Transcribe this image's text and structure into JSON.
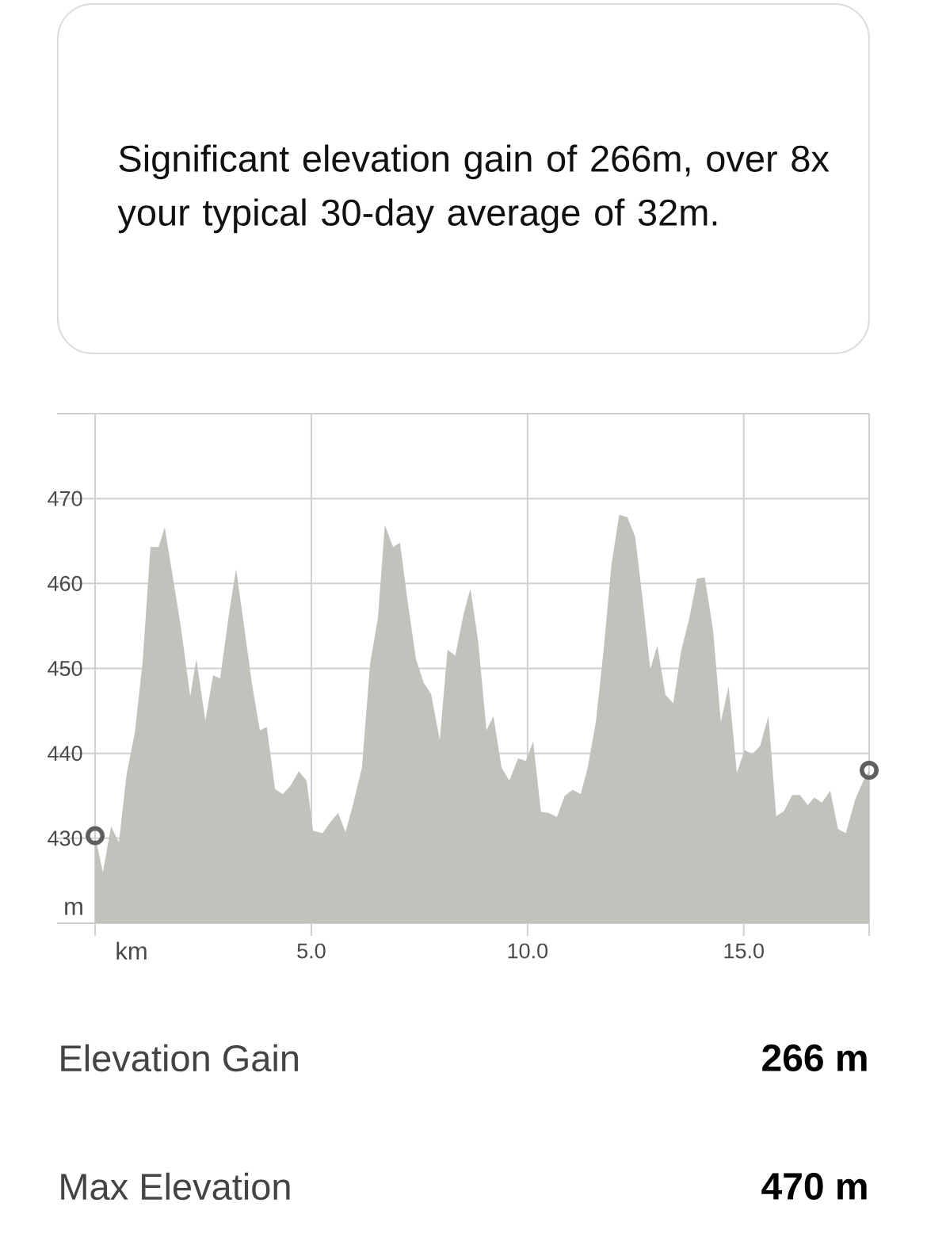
{
  "chart_data": {
    "type": "area",
    "title": "Significant elevation gain of 266m, over 8x your typical 30-day average of 32m.",
    "xlabel": "km",
    "ylabel": "m",
    "xlim": [
      -0.88,
      17.9
    ],
    "ylim": [
      420,
      480
    ],
    "xticks": [
      {
        "value": 0,
        "label": null
      },
      {
        "value": 5,
        "label": "5.0"
      },
      {
        "value": 10,
        "label": "10.0"
      },
      {
        "value": 15,
        "label": "15.0"
      },
      {
        "value": 17.9,
        "label": null
      }
    ],
    "yticks": [
      {
        "value": 420,
        "label": null
      },
      430,
      440,
      450,
      460,
      470,
      {
        "value": 480,
        "label": null
      }
    ],
    "grid": true,
    "series": [
      {
        "color": "#c2c1bc",
        "x": [
          0,
          0.18,
          0.37,
          0.55,
          0.73,
          0.92,
          1.1,
          1.28,
          1.47,
          1.61,
          1.79,
          1.98,
          2.2,
          2.34,
          2.55,
          2.73,
          2.89,
          3.11,
          3.26,
          3.42,
          3.63,
          3.81,
          3.97,
          4.16,
          4.34,
          4.52,
          4.71,
          4.89,
          5.04,
          5.26,
          5.44,
          5.62,
          5.79,
          5.95,
          6.17,
          6.36,
          6.54,
          6.7,
          6.89,
          7.05,
          7.23,
          7.42,
          7.6,
          7.77,
          7.97,
          8.15,
          8.33,
          8.52,
          8.68,
          8.86,
          9.05,
          9.21,
          9.4,
          9.58,
          9.78,
          9.96,
          10.13,
          10.31,
          10.49,
          10.68,
          10.86,
          11.04,
          11.23,
          11.39,
          11.58,
          11.76,
          11.94,
          12.12,
          12.31,
          12.49,
          12.66,
          12.84,
          13.0,
          13.19,
          13.37,
          13.55,
          13.74,
          13.92,
          14.1,
          14.29,
          14.47,
          14.65,
          14.84,
          15.02,
          15.2,
          15.38,
          15.57,
          15.75,
          15.93,
          16.12,
          16.3,
          16.48,
          16.63,
          16.81,
          17.0,
          17.18,
          17.36,
          17.58,
          17.77,
          17.9
        ],
        "values": [
          430.3,
          426.0,
          431.4,
          429.5,
          437.6,
          442.5,
          450.8,
          464.3,
          464.3,
          466.6,
          461.0,
          455.0,
          446.7,
          451.1,
          443.9,
          449.2,
          448.8,
          456.9,
          461.7,
          455.9,
          448.1,
          442.7,
          443.1,
          435.8,
          435.2,
          436.2,
          437.9,
          436.8,
          430.9,
          430.6,
          431.9,
          433.0,
          430.7,
          433.7,
          438.3,
          450.6,
          455.9,
          466.9,
          464.3,
          464.8,
          457.8,
          451.1,
          448.3,
          447.0,
          441.6,
          452.2,
          451.5,
          456.4,
          459.4,
          453.1,
          442.7,
          444.4,
          438.3,
          436.8,
          439.4,
          439.1,
          441.4,
          433.1,
          433.0,
          432.5,
          435.0,
          435.7,
          435.2,
          438.3,
          443.7,
          452.2,
          462.2,
          468.1,
          467.8,
          465.5,
          458.2,
          449.9,
          452.7,
          446.9,
          445.9,
          452.0,
          455.9,
          460.6,
          460.7,
          454.5,
          443.7,
          447.9,
          437.7,
          440.4,
          439.9,
          440.9,
          444.4,
          432.6,
          433.2,
          435.1,
          435.1,
          433.9,
          434.8,
          434.2,
          435.6,
          431.1,
          430.6,
          434.6,
          436.8,
          438.0
        ]
      },
      {
        "type": "scatter",
        "marker": "circle",
        "color": "#5f5f5f",
        "x": [
          0,
          17.9
        ],
        "values": [
          430.3,
          438.0
        ]
      }
    ],
    "annotations": [
      "Elevation Gain",
      "266 m",
      "Max Elevation",
      "470 m"
    ]
  }
}
